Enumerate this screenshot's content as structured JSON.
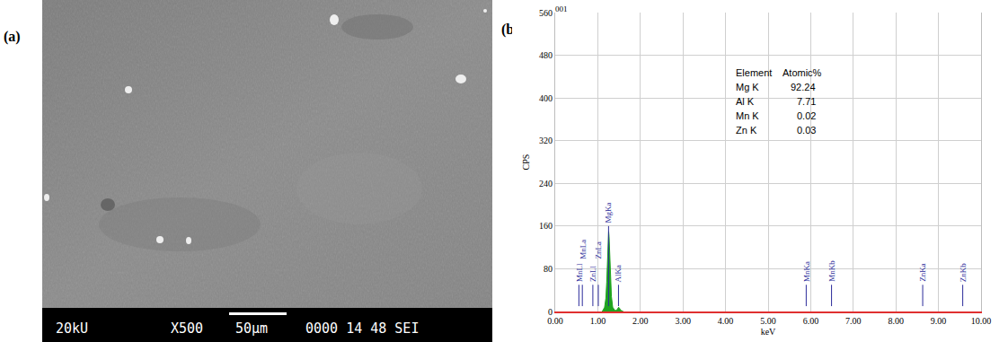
{
  "panel_labels": [
    "(a)",
    "(b)"
  ],
  "sem_image": {
    "info_bar": [
      "20kU",
      "X500",
      "50µm",
      "0000 14 48 SEI"
    ]
  },
  "chart_data": {
    "type": "area",
    "title": "001",
    "x_label": "keV",
    "y_label": "CPS",
    "x": [
      1.1,
      1.12,
      1.16,
      1.19,
      1.21,
      1.23,
      1.245,
      1.255,
      1.265,
      1.28,
      1.3,
      1.32,
      1.35,
      1.4,
      1.44,
      1.47,
      1.49,
      1.51,
      1.54,
      1.6
    ],
    "values": [
      0,
      2,
      8,
      25,
      55,
      100,
      140,
      150,
      140,
      105,
      60,
      28,
      8,
      2,
      2,
      6,
      8,
      6,
      2,
      0
    ],
    "color": "#1fa31f",
    "xlim": [
      0,
      10
    ],
    "xticks": [
      {
        "value": 0,
        "label": "0.00"
      },
      {
        "value": 1,
        "label": "1.00"
      },
      {
        "value": 2,
        "label": "2.00"
      },
      {
        "value": 3,
        "label": "3.00"
      },
      {
        "value": 4,
        "label": "4.00"
      },
      {
        "value": 5,
        "label": "5.00"
      },
      {
        "value": 6,
        "label": "6.00"
      },
      {
        "value": 7,
        "label": "7.00"
      },
      {
        "value": 8,
        "label": "8.00"
      },
      {
        "value": 9,
        "label": "9.00"
      },
      {
        "value": 10,
        "label": "10.00"
      }
    ],
    "ylim": [
      0,
      560
    ],
    "yticks": [
      0,
      80,
      160,
      240,
      320,
      400,
      480,
      560
    ],
    "grid": true,
    "element_lines": {
      "color": "#2b2b9a",
      "labels": [
        "MnLl",
        "MnLa",
        "ZnLl",
        "ZnLa",
        "MgKa",
        "AlKa",
        "MnKa",
        "MnKb",
        "ZnKa",
        "ZnKb"
      ],
      "x": [
        0.556,
        0.637,
        0.884,
        1.012,
        1.253,
        1.486,
        5.894,
        6.489,
        8.63,
        9.57
      ],
      "y0": [
        10,
        10,
        10,
        10,
        10,
        10,
        10,
        10,
        10,
        10
      ],
      "y1": [
        50,
        50,
        50,
        50,
        160,
        50,
        50,
        50,
        50,
        50
      ],
      "label_y": [
        52,
        95,
        52,
        95,
        162,
        52,
        52,
        52,
        52,
        52
      ]
    },
    "table": {
      "header": [
        "Element",
        "Atomic%"
      ],
      "rows": [
        [
          "Mg K",
          92.24
        ],
        [
          "Al K",
          7.71
        ],
        [
          "Mn K",
          0.02
        ],
        [
          "Zn K",
          0.03
        ]
      ]
    }
  }
}
